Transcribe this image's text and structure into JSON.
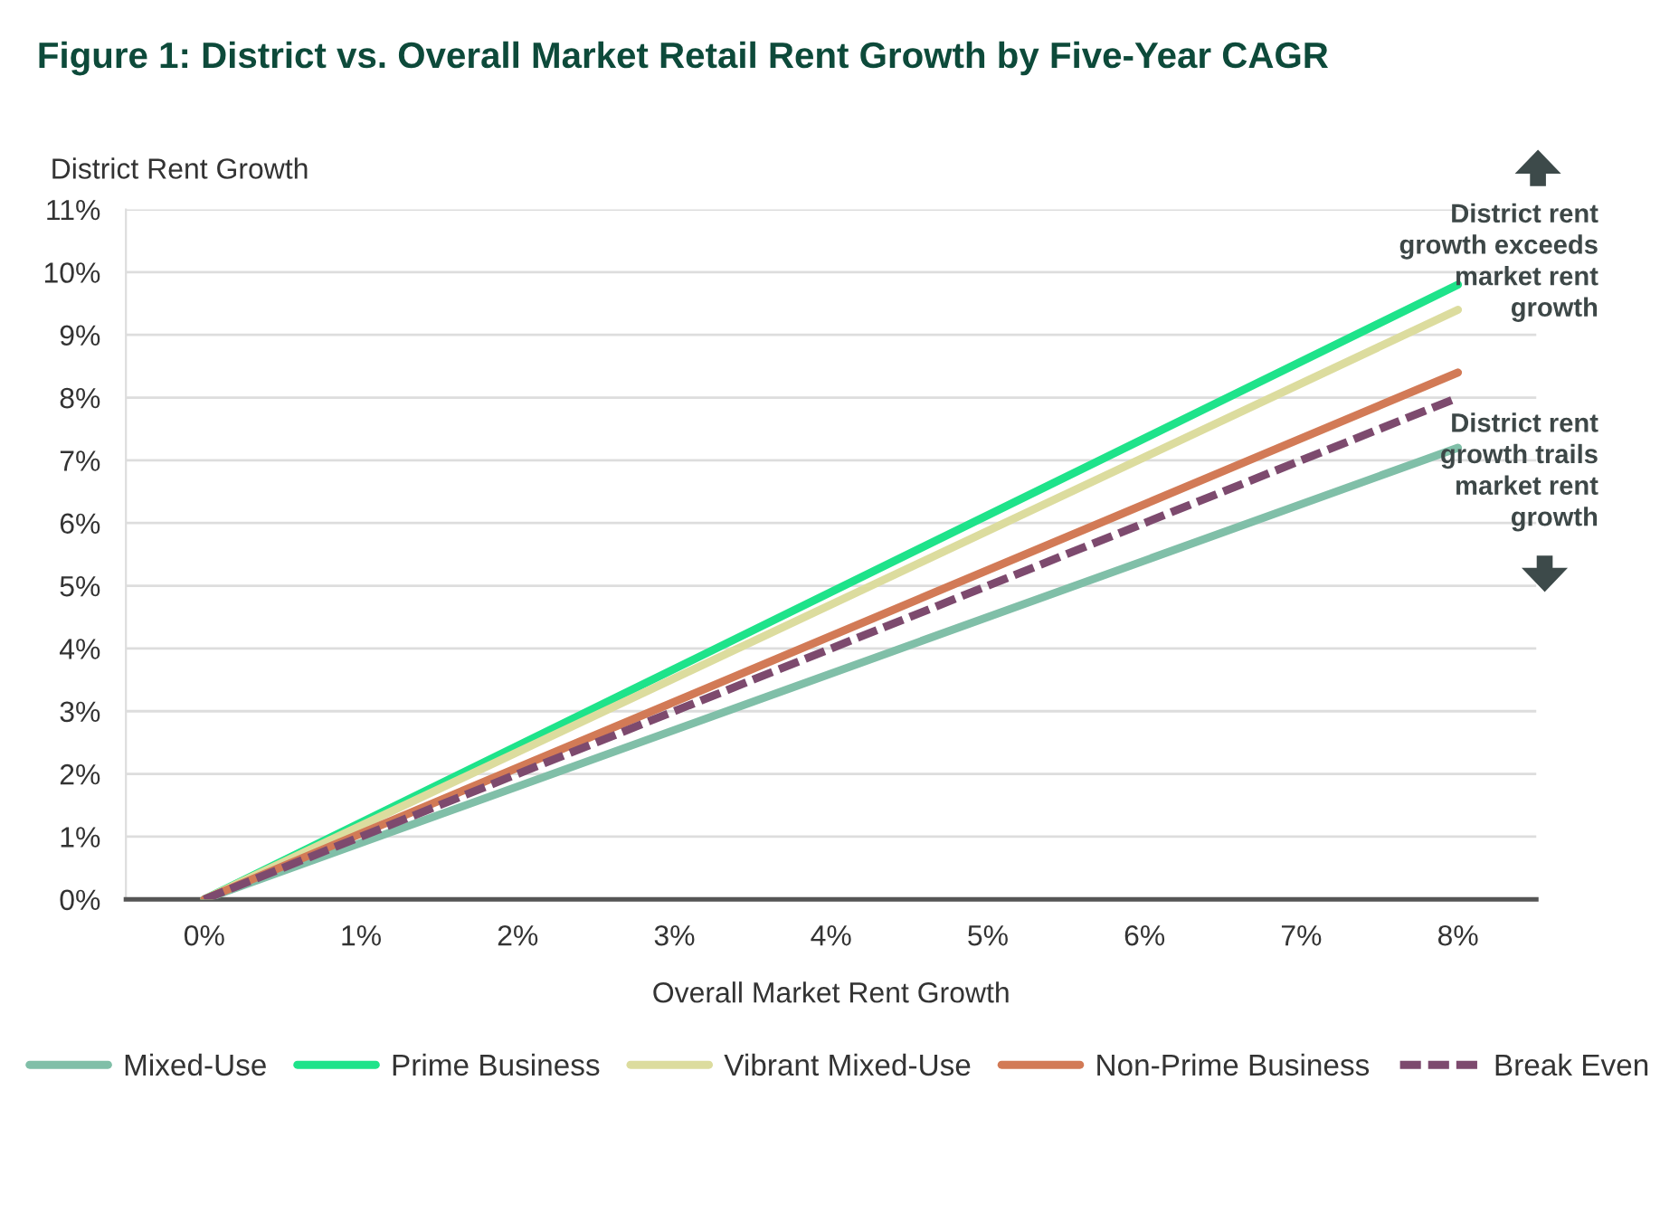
{
  "chart_data": {
    "type": "line",
    "title": "Figure 1: District vs. Overall Market Retail Rent Growth by Five-Year CAGR",
    "xlabel": "Overall Market Rent Growth",
    "ylabel": "District Rent Growth",
    "x": [
      0,
      8
    ],
    "series": [
      {
        "name": "Mixed-Use",
        "color": "#80bfa8",
        "values": [
          0,
          7.2
        ]
      },
      {
        "name": "Prime Business",
        "color": "#1ee38a",
        "values": [
          0,
          9.8
        ]
      },
      {
        "name": "Vibrant Mixed-Use",
        "color": "#dcdc9e",
        "values": [
          0,
          9.4
        ]
      },
      {
        "name": "Non-Prime Business",
        "color": "#d27a56",
        "values": [
          0,
          8.4
        ]
      },
      {
        "name": "Break Even",
        "color": "#7d4a6e",
        "values": [
          0,
          8
        ],
        "line_style": "dashed"
      }
    ],
    "xlim": [
      -0.5,
      8.5
    ],
    "ylim": [
      0,
      11
    ],
    "xticks": [
      {
        "value": 0,
        "label": "0%"
      },
      {
        "value": 1,
        "label": "1%"
      },
      {
        "value": 2,
        "label": "2%"
      },
      {
        "value": 3,
        "label": "3%"
      },
      {
        "value": 4,
        "label": "4%"
      },
      {
        "value": 5,
        "label": "5%"
      },
      {
        "value": 6,
        "label": "6%"
      },
      {
        "value": 7,
        "label": "7%"
      },
      {
        "value": 8,
        "label": "8%"
      }
    ],
    "yticks": [
      {
        "value": 0,
        "label": "0%"
      },
      {
        "value": 1,
        "label": "1%"
      },
      {
        "value": 2,
        "label": "2%"
      },
      {
        "value": 3,
        "label": "3%"
      },
      {
        "value": 4,
        "label": "4%"
      },
      {
        "value": 5,
        "label": "5%"
      },
      {
        "value": 6,
        "label": "6%"
      },
      {
        "value": 7,
        "label": "7%"
      },
      {
        "value": 8,
        "label": "8%"
      },
      {
        "value": 9,
        "label": "9%"
      },
      {
        "value": 10,
        "label": "10%"
      },
      {
        "value": 11,
        "label": "11%"
      }
    ],
    "annotations": [
      "District rent\ngrowth exceeds\nmarket rent\ngrowth",
      "District rent\ngrowth trails\nmarket rent\ngrowth"
    ],
    "grid": "y",
    "legend": "bottom",
    "marker": "none",
    "line_style": "solid"
  }
}
